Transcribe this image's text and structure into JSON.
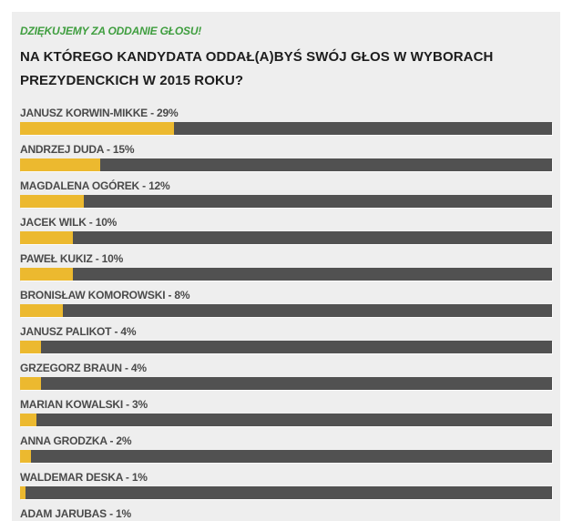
{
  "colors": {
    "bar_fill": "#ecb92f",
    "bar_track": "#515151",
    "panel_bg": "#eeeeee",
    "thanks_green": "#3f9e3f",
    "label_text": "#4a4a4a",
    "question_text": "#1d1d1d"
  },
  "header": {
    "thanks": "DZIĘKUJEMY ZA ODDANIE GŁOSU!",
    "question": "NA KTÓREGO KANDYDATA ODDAŁ(A)BYŚ SWÓJ GŁOS W WYBORACH PREZYDENCKICH W 2015 ROKU?"
  },
  "results": [
    {
      "label": "JANUSZ KORWIN-MIKKE - 29%",
      "value": 29
    },
    {
      "label": "ANDRZEJ DUDA - 15%",
      "value": 15
    },
    {
      "label": "MAGDALENA OGÓREK - 12%",
      "value": 12
    },
    {
      "label": "JACEK WILK - 10%",
      "value": 10
    },
    {
      "label": "PAWEŁ KUKIZ - 10%",
      "value": 10
    },
    {
      "label": "BRONISŁAW KOMOROWSKI - 8%",
      "value": 8
    },
    {
      "label": "JANUSZ PALIKOT - 4%",
      "value": 4
    },
    {
      "label": "GRZEGORZ BRAUN - 4%",
      "value": 4
    },
    {
      "label": "MARIAN KOWALSKI - 3%",
      "value": 3
    },
    {
      "label": "ANNA GRODZKA - 2%",
      "value": 2
    },
    {
      "label": "WALDEMAR DESKA - 1%",
      "value": 1
    },
    {
      "label": "ADAM JARUBAS - 1%",
      "value": 1
    }
  ],
  "chart_data": {
    "type": "bar",
    "orientation": "horizontal",
    "title": "NA KTÓREGO KANDYDATA ODDAŁ(A)BYŚ SWÓJ GŁOS W WYBORACH PREZYDENCKICH W 2015 ROKU?",
    "subtitle": "DZIĘKUJEMY ZA ODDANIE GŁOSU!",
    "categories": [
      "JANUSZ KORWIN-MIKKE",
      "ANDRZEJ DUDA",
      "MAGDALENA OGÓREK",
      "JACEK WILK",
      "PAWEŁ KUKIZ",
      "BRONISŁAW KOMOROWSKI",
      "JANUSZ PALIKOT",
      "GRZEGORZ BRAUN",
      "MARIAN KOWALSKI",
      "ANNA GRODZKA",
      "WALDEMAR DESKA",
      "ADAM JARUBAS"
    ],
    "values": [
      29,
      15,
      12,
      10,
      10,
      8,
      4,
      4,
      3,
      2,
      1,
      1
    ],
    "unit": "%",
    "xlabel": "",
    "ylabel": "",
    "xlim": [
      0,
      100
    ],
    "grid": false,
    "legend": false,
    "data_labels": "inline with category name, format 'NAME - N%'"
  }
}
